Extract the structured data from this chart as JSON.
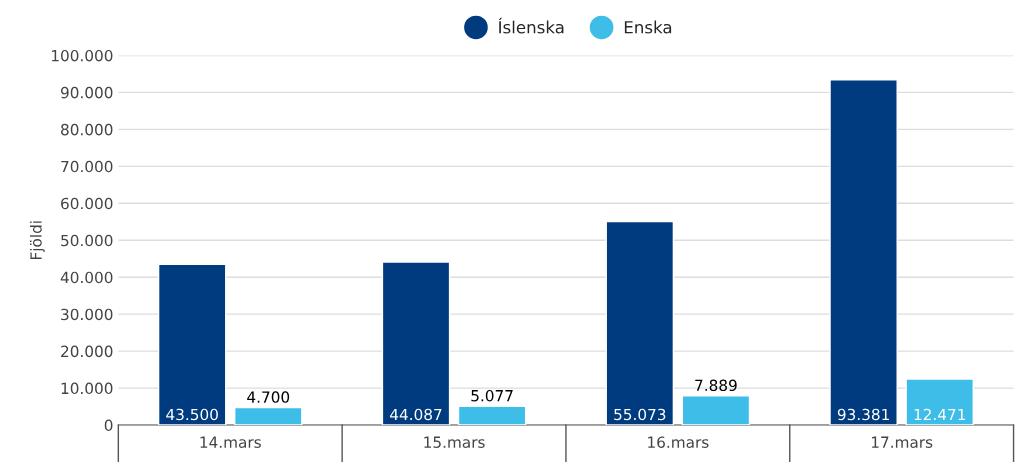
{
  "chart_data": {
    "type": "bar",
    "ylabel": "Fjöldi",
    "categories": [
      "14.mars",
      "15.mars",
      "16.mars",
      "17.mars"
    ],
    "series": [
      {
        "name": "Íslenska",
        "color": "#003b7f",
        "values": [
          43500,
          44087,
          55073,
          93381
        ],
        "value_labels": [
          "43.500",
          "44.087",
          "55.073",
          "93.381"
        ]
      },
      {
        "name": "Enska",
        "color": "#3dbde8",
        "values": [
          4700,
          5077,
          7889,
          12471
        ],
        "value_labels": [
          "4.700",
          "5.077",
          "7.889",
          "12.471"
        ]
      }
    ],
    "ylim": [
      0,
      100000
    ],
    "yticks": [
      {
        "value": 0,
        "label": "0"
      },
      {
        "value": 10000,
        "label": "10.000"
      },
      {
        "value": 20000,
        "label": "20.000"
      },
      {
        "value": 30000,
        "label": "30.000"
      },
      {
        "value": 40000,
        "label": "40.000"
      },
      {
        "value": 50000,
        "label": "50.000"
      },
      {
        "value": 60000,
        "label": "60.000"
      },
      {
        "value": 70000,
        "label": "70.000"
      },
      {
        "value": 80000,
        "label": "80.000"
      },
      {
        "value": 90000,
        "label": "90.000"
      },
      {
        "value": 100000,
        "label": "100.000"
      }
    ],
    "grid": "y",
    "legend": "top"
  }
}
